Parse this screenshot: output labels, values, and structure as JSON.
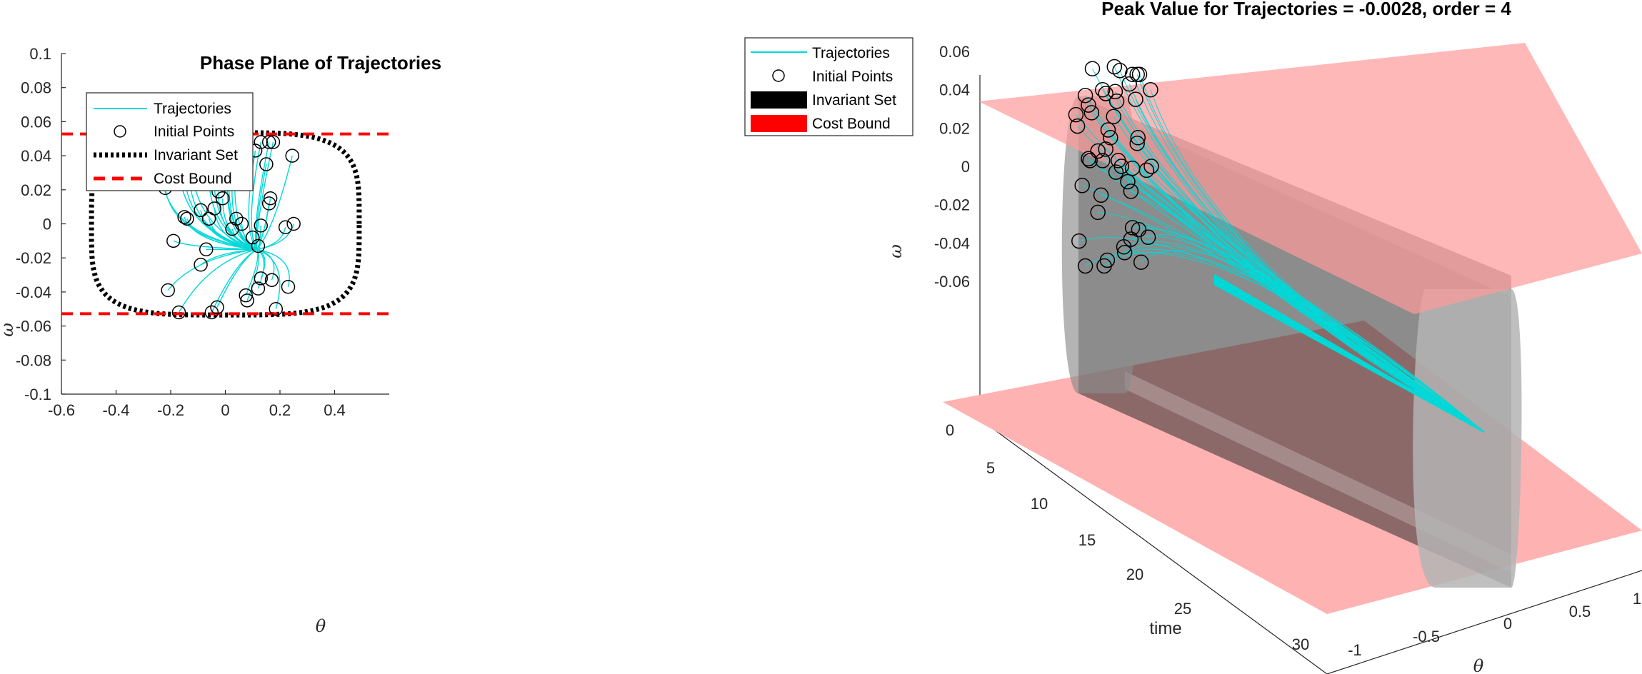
{
  "chart_data": [
    {
      "type": "line",
      "title": "Phase Plane of Trajectories",
      "xlabel": "θ",
      "ylabel": "ω",
      "xlim": [
        -0.6,
        0.6
      ],
      "ylim": [
        -0.1,
        0.1
      ],
      "xticks": [
        "-0.6",
        "-0.4",
        "-0.2",
        "0",
        "0.2",
        "0.4"
      ],
      "yticks": [
        "-0.1",
        "-0.08",
        "-0.06",
        "-0.04",
        "-0.02",
        "0",
        "0.02",
        "0.04",
        "0.06",
        "0.08",
        "0.1"
      ],
      "legend": {
        "placement": "top-left",
        "entries": [
          "Trajectories",
          "Initial Points",
          "Invariant Set",
          "Cost Bound"
        ]
      },
      "cost_bound": [
        -0.0528,
        0.0528
      ],
      "invariant_set": {
        "theta_radius": 0.49,
        "omega_radius": 0.0535,
        "shape": "superellipse"
      },
      "attractor_point": [
        0.115,
        -0.015
      ],
      "initial_points": [
        [
          -0.23,
          0.027
        ],
        [
          -0.22,
          0.021
        ],
        [
          -0.17,
          0.037
        ],
        [
          -0.15,
          0.032
        ],
        [
          -0.13,
          0.028
        ],
        [
          -0.125,
          0.051
        ],
        [
          -0.15,
          0.004
        ],
        [
          -0.14,
          0.003
        ],
        [
          -0.19,
          -0.01
        ],
        [
          -0.21,
          -0.039
        ],
        [
          -0.17,
          -0.052
        ],
        [
          -0.09,
          0.008
        ],
        [
          -0.07,
          -0.015
        ],
        [
          -0.09,
          -0.024
        ],
        [
          -0.05,
          -0.052
        ],
        [
          -0.03,
          -0.049
        ],
        [
          -0.06,
          0.003
        ],
        [
          -0.04,
          0.009
        ],
        [
          -0.06,
          0.04
        ],
        [
          -0.04,
          0.038
        ],
        [
          -0.025,
          0.019
        ],
        [
          -0.01,
          0.015
        ],
        [
          0.01,
          0.026
        ],
        [
          0.015,
          0.052
        ],
        [
          0.02,
          0.039
        ],
        [
          0.03,
          0.034
        ],
        [
          0.05,
          0.05
        ],
        [
          0.025,
          -0.003
        ],
        [
          0.04,
          0.003
        ],
        [
          0.06,
          0.0
        ],
        [
          0.1,
          -0.008
        ],
        [
          0.12,
          -0.013
        ],
        [
          0.13,
          -0.001
        ],
        [
          0.11,
          0.043
        ],
        [
          0.13,
          0.048
        ],
        [
          0.16,
          0.048
        ],
        [
          0.15,
          0.035
        ],
        [
          0.175,
          0.048
        ],
        [
          0.165,
          0.015
        ],
        [
          0.16,
          0.012
        ],
        [
          0.22,
          -0.002
        ],
        [
          0.25,
          0.0
        ],
        [
          0.245,
          0.04
        ],
        [
          0.13,
          -0.032
        ],
        [
          0.17,
          -0.033
        ],
        [
          0.12,
          -0.038
        ],
        [
          0.08,
          -0.045
        ],
        [
          0.075,
          -0.042
        ],
        [
          0.185,
          -0.05
        ],
        [
          0.23,
          -0.037
        ]
      ]
    },
    {
      "type": "line",
      "title": "Peak Value for Trajectories = -0.0028, order = 4",
      "xlabel": "θ",
      "ylabel": "time",
      "zlabel": "ω",
      "xlim": [
        -1.2,
        1.2
      ],
      "ylim": [
        0,
        30
      ],
      "zlim": [
        -0.06,
        0.06
      ],
      "xticks": [
        "-1",
        "-0.5",
        "0",
        "0.5",
        "1"
      ],
      "yticks": [
        "0",
        "5",
        "10",
        "15",
        "20",
        "25",
        "30"
      ],
      "zticks": [
        "-0.06",
        "-0.04",
        "-0.02",
        "0",
        "0.02",
        "0.04",
        "0.06"
      ],
      "legend": {
        "placement": "top-left",
        "entries": [
          "Trajectories",
          "Initial Points",
          "Invariant Set",
          "Cost Bound"
        ]
      }
    }
  ],
  "colors": {
    "trajectory": "#00d8d8",
    "initial_point": "#000000",
    "invariant_set": "#000000",
    "cost_bound": "#ff0000",
    "cost_plane_fill": "#ffb2b2",
    "invariant_fill": "#808080"
  },
  "legend_icons": {
    "trajectories": "cyan-line-icon",
    "initial_points": "circle-marker-icon",
    "invariant_set": "dotted-line-icon",
    "cost_bound": "dashed-line-icon"
  }
}
